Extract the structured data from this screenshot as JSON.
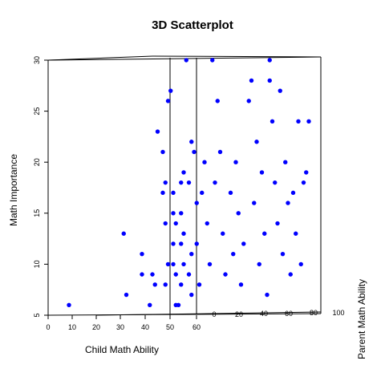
{
  "chart_data": {
    "type": "scatter",
    "title": "3D Scatterplot",
    "xlabel": "Child Math Ability",
    "ylabel": "Math Importance",
    "zlabel": "Parent Math Ability",
    "xlim": [
      0,
      100
    ],
    "ylim": [
      5,
      30
    ],
    "zlim": [
      0,
      100
    ],
    "x_ticks": [
      "0",
      "10",
      "20",
      "30",
      "40",
      "50",
      "60"
    ],
    "y_ticks": [
      "5",
      "10",
      "15",
      "20",
      "25",
      "30"
    ],
    "z_ticks": [
      "0",
      "20",
      "40",
      "60",
      "80",
      "100"
    ],
    "point_color": "#0000ff",
    "grid": false,
    "points": [
      {
        "x": 8,
        "y": 6
      },
      {
        "x": 29,
        "y": 13
      },
      {
        "x": 30,
        "y": 7
      },
      {
        "x": 36,
        "y": 11
      },
      {
        "x": 36,
        "y": 9
      },
      {
        "x": 39,
        "y": 6
      },
      {
        "x": 40,
        "y": 9
      },
      {
        "x": 41,
        "y": 8
      },
      {
        "x": 42,
        "y": 23
      },
      {
        "x": 44,
        "y": 21
      },
      {
        "x": 44,
        "y": 17
      },
      {
        "x": 45,
        "y": 18
      },
      {
        "x": 45,
        "y": 14
      },
      {
        "x": 45,
        "y": 8
      },
      {
        "x": 46,
        "y": 26
      },
      {
        "x": 46,
        "y": 10
      },
      {
        "x": 47,
        "y": 27
      },
      {
        "x": 48,
        "y": 17
      },
      {
        "x": 48,
        "y": 15
      },
      {
        "x": 48,
        "y": 12
      },
      {
        "x": 48,
        "y": 10
      },
      {
        "x": 49,
        "y": 14
      },
      {
        "x": 49,
        "y": 9
      },
      {
        "x": 49,
        "y": 6
      },
      {
        "x": 50,
        "y": 6
      },
      {
        "x": 51,
        "y": 18
      },
      {
        "x": 51,
        "y": 15
      },
      {
        "x": 51,
        "y": 12
      },
      {
        "x": 51,
        "y": 8
      },
      {
        "x": 52,
        "y": 19
      },
      {
        "x": 52,
        "y": 13
      },
      {
        "x": 52,
        "y": 10
      },
      {
        "x": 53,
        "y": 30
      },
      {
        "x": 54,
        "y": 18
      },
      {
        "x": 54,
        "y": 9
      },
      {
        "x": 55,
        "y": 22
      },
      {
        "x": 55,
        "y": 11
      },
      {
        "x": 55,
        "y": 7
      },
      {
        "x": 56,
        "y": 21
      },
      {
        "x": 57,
        "y": 16
      },
      {
        "x": 57,
        "y": 12
      },
      {
        "x": 58,
        "y": 8
      },
      {
        "x": 59,
        "y": 17
      },
      {
        "x": 60,
        "y": 20
      },
      {
        "x": 61,
        "y": 14
      },
      {
        "x": 62,
        "y": 10
      },
      {
        "x": 63,
        "y": 30
      },
      {
        "x": 64,
        "y": 18
      },
      {
        "x": 65,
        "y": 26
      },
      {
        "x": 66,
        "y": 21
      },
      {
        "x": 67,
        "y": 13
      },
      {
        "x": 68,
        "y": 9
      },
      {
        "x": 70,
        "y": 17
      },
      {
        "x": 71,
        "y": 11
      },
      {
        "x": 72,
        "y": 20
      },
      {
        "x": 73,
        "y": 15
      },
      {
        "x": 74,
        "y": 8
      },
      {
        "x": 75,
        "y": 12
      },
      {
        "x": 77,
        "y": 26
      },
      {
        "x": 78,
        "y": 28
      },
      {
        "x": 79,
        "y": 16
      },
      {
        "x": 80,
        "y": 22
      },
      {
        "x": 81,
        "y": 10
      },
      {
        "x": 82,
        "y": 19
      },
      {
        "x": 83,
        "y": 13
      },
      {
        "x": 84,
        "y": 7
      },
      {
        "x": 85,
        "y": 28
      },
      {
        "x": 85,
        "y": 30
      },
      {
        "x": 86,
        "y": 24
      },
      {
        "x": 87,
        "y": 18
      },
      {
        "x": 88,
        "y": 14
      },
      {
        "x": 89,
        "y": 27
      },
      {
        "x": 90,
        "y": 11
      },
      {
        "x": 91,
        "y": 20
      },
      {
        "x": 92,
        "y": 16
      },
      {
        "x": 93,
        "y": 9
      },
      {
        "x": 94,
        "y": 17
      },
      {
        "x": 95,
        "y": 13
      },
      {
        "x": 96,
        "y": 24
      },
      {
        "x": 97,
        "y": 10
      },
      {
        "x": 98,
        "y": 18
      },
      {
        "x": 99,
        "y": 19
      },
      {
        "x": 100,
        "y": 24
      }
    ]
  }
}
